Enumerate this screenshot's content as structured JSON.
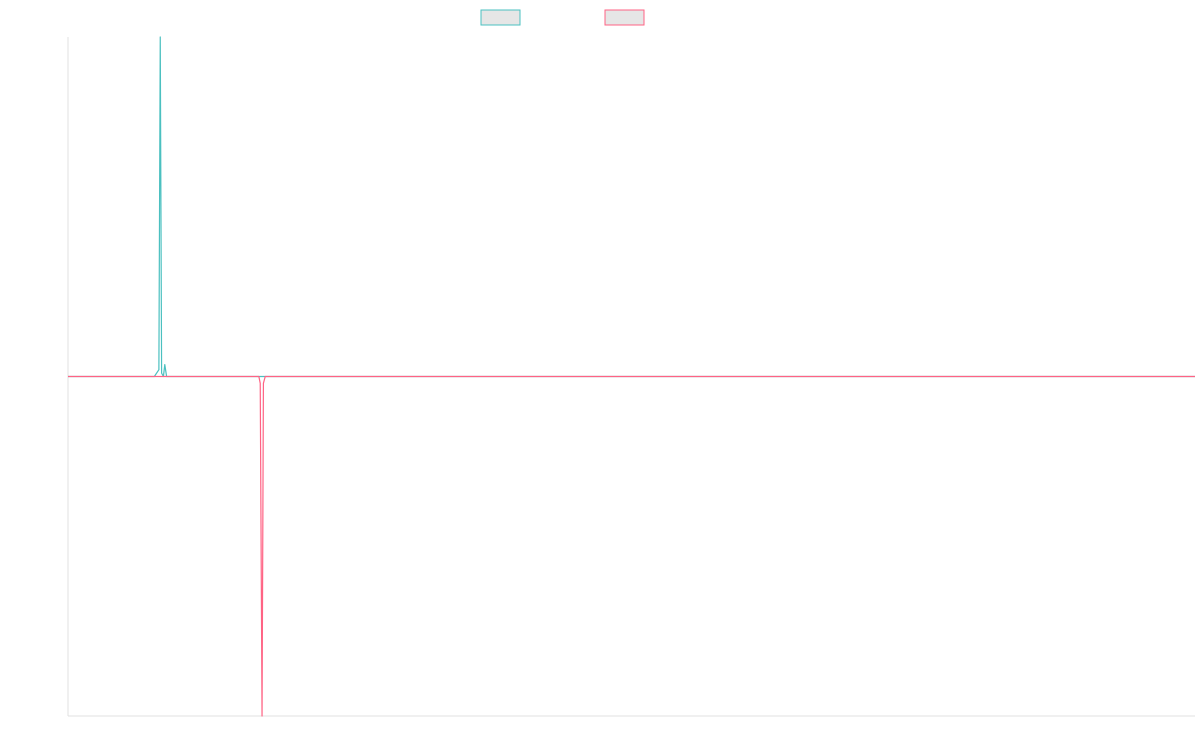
{
  "chart_data": {
    "type": "line",
    "title": "",
    "xlabel": "",
    "ylabel": "",
    "xlim": [
      0,
      248
    ],
    "ylim": [
      -1,
      1
    ],
    "grid": false,
    "legend_position": "top-center",
    "series": [
      {
        "color": "#4bc0c0",
        "fill": "#e6e6e6",
        "points": [
          [
            0,
            0
          ],
          [
            19,
            0
          ],
          [
            20,
            0.02
          ],
          [
            20.3,
            1.0
          ],
          [
            20.6,
            0.01
          ],
          [
            21,
            0.0
          ],
          [
            21.3,
            0.035
          ],
          [
            21.7,
            0.0
          ],
          [
            22,
            0
          ],
          [
            248,
            0
          ]
        ]
      },
      {
        "color": "#ff6384",
        "fill": "#e6e6e6",
        "points": [
          [
            0,
            0
          ],
          [
            42,
            0
          ],
          [
            42.3,
            -0.02
          ],
          [
            42.7,
            -1.0
          ],
          [
            43.0,
            -0.02
          ],
          [
            43.4,
            0
          ],
          [
            248,
            0
          ]
        ]
      }
    ]
  }
}
